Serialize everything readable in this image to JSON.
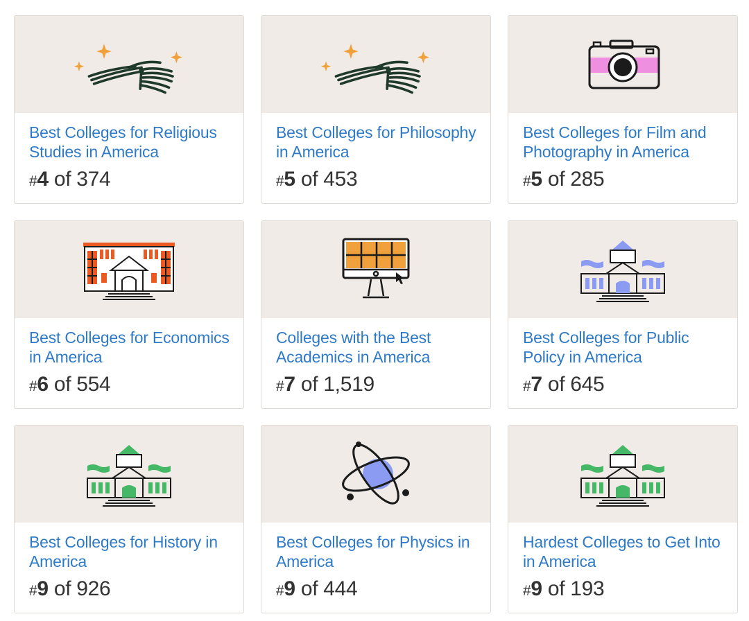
{
  "cards": [
    {
      "title": "Best Colleges for Religious Studies in America",
      "rank": "4",
      "of": "of 374",
      "icon": "book-stars-icon"
    },
    {
      "title": "Best Colleges for Philosophy in America",
      "rank": "5",
      "of": "of 453",
      "icon": "book-stars-icon"
    },
    {
      "title": "Best Colleges for Film and Photography in America",
      "rank": "5",
      "of": "of 285",
      "icon": "camera-icon"
    },
    {
      "title": "Best Colleges for Economics in America",
      "rank": "6",
      "of": "of 554",
      "icon": "orange-building-icon"
    },
    {
      "title": "Colleges with the Best Academics in America",
      "rank": "7",
      "of": "of 1,519",
      "icon": "monitor-grid-icon"
    },
    {
      "title": "Best Colleges for Public Policy in America",
      "rank": "7",
      "of": "of 645",
      "icon": "purple-college-building-icon"
    },
    {
      "title": "Best Colleges for History in America",
      "rank": "9",
      "of": "of 926",
      "icon": "green-college-building-icon"
    },
    {
      "title": "Best Colleges for Physics in America",
      "rank": "9",
      "of": "of 444",
      "icon": "atom-icon"
    },
    {
      "title": "Hardest Colleges to Get Into in America",
      "rank": "9",
      "of": "of 193",
      "icon": "dark-college-building-icon"
    }
  ],
  "rank_prefix": "#",
  "colors": {
    "link": "#2e7ac7",
    "card_image_bg": "#f0ebe6",
    "accent_orange": "#f0a13b",
    "accent_pink": "#ef8fdf",
    "accent_red_orange": "#ec5a24",
    "accent_purple": "#8c9bf2",
    "accent_green": "#44b866"
  }
}
